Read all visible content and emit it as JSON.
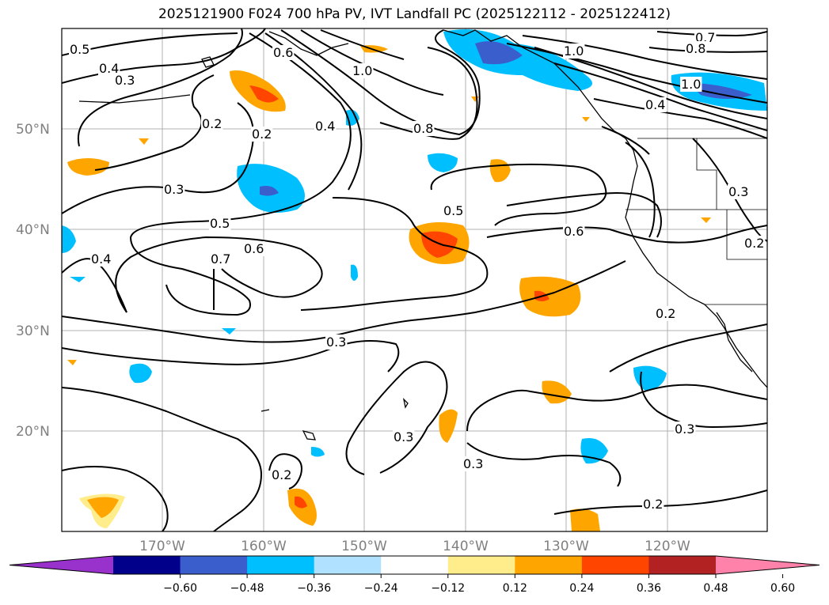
{
  "title": "2025121900 F024 700 hPa PV, IVT Landfall PC (2025122112 - 2025122412)",
  "lat_labels": [
    "50°N",
    "40°N",
    "30°N",
    "20°N"
  ],
  "lon_labels": [
    "170°W",
    "160°W",
    "150°W",
    "140°W",
    "130°W",
    "120°W"
  ],
  "colorbar": {
    "colors": [
      "#9932cc",
      "#00008b",
      "#3a5fcd",
      "#00bfff",
      "#b0e2ff",
      "#ffffff",
      "#ffec8b",
      "#ffa500",
      "#ff4500",
      "#b22222",
      "#ff82ab"
    ],
    "ticks": [
      "−0.60",
      "−0.48",
      "−0.36",
      "−0.24",
      "−0.12",
      "0.12",
      "0.24",
      "0.36",
      "0.48",
      "0.60"
    ]
  },
  "contour_labels": [
    "0.5",
    "0.4",
    "0.3",
    "0.2",
    "0.2",
    "0.6",
    "0.4",
    "1.0",
    "0.8",
    "1.0",
    "0.7",
    "0.8",
    "1.0",
    "0.4",
    "0.3",
    "0.5",
    "0.6",
    "0.5",
    "0.6",
    "0.7",
    "0.4",
    "0.3",
    "0.2",
    "0.3",
    "0.2",
    "0.3",
    "0.3",
    "0.2",
    "0.2",
    "0.3"
  ]
}
